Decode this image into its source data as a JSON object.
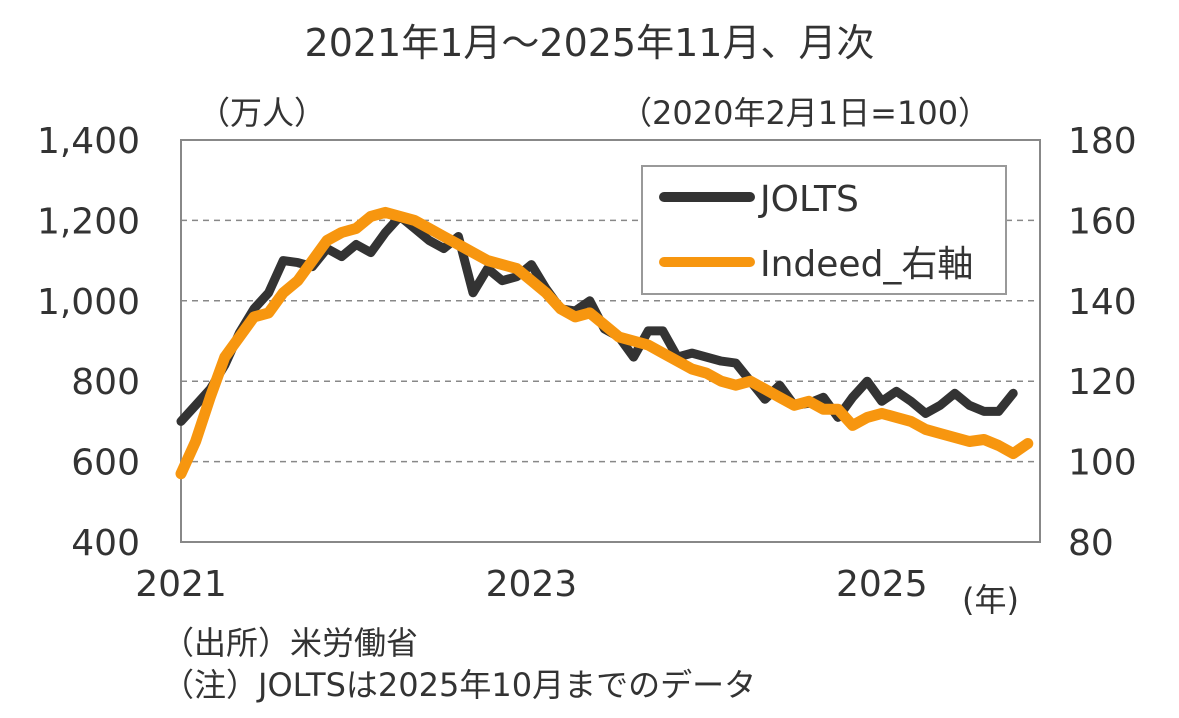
{
  "chart_data": {
    "type": "line",
    "title": "2021年1月～2025年11月、月次",
    "left_axis_unit": "（万人）",
    "right_axis_unit": "（2020年2月1日=100）",
    "x_unit": "(年)",
    "x_start": "2021-01",
    "x_ticks": [
      "2021",
      "2023",
      "2025"
    ],
    "y_left": {
      "range": [
        400,
        1400
      ],
      "ticks": [
        "400",
        "600",
        "800",
        "1,000",
        "1,200",
        "1,400"
      ]
    },
    "y_right": {
      "range": [
        80,
        180
      ],
      "ticks": [
        "80",
        "100",
        "120",
        "140",
        "160",
        "180"
      ]
    },
    "grid": true,
    "legend_position": "top-right",
    "series": [
      {
        "name": "JOLTS",
        "axis": "left",
        "color": "#333333",
        "values": [
          700,
          740,
          780,
          840,
          920,
          980,
          1020,
          1100,
          1095,
          1085,
          1130,
          1110,
          1140,
          1120,
          1170,
          1210,
          1180,
          1150,
          1130,
          1160,
          1020,
          1080,
          1050,
          1060,
          1090,
          1030,
          980,
          975,
          1000,
          930,
          910,
          860,
          925,
          925,
          860,
          870,
          860,
          850,
          845,
          800,
          755,
          790,
          740,
          745,
          760,
          710,
          760,
          800,
          750,
          775,
          750,
          720,
          740,
          770,
          740,
          725,
          725,
          770,
          null
        ]
      },
      {
        "name": "Indeed_右軸",
        "axis": "right",
        "color": "#F7960F",
        "values": [
          97,
          105,
          116,
          126,
          131,
          136,
          137,
          142,
          145,
          150,
          155,
          157,
          158,
          161,
          162,
          161,
          160,
          158,
          156,
          154,
          152,
          150,
          149,
          148,
          145,
          142,
          138,
          136,
          137,
          134,
          131,
          130,
          129,
          127,
          125,
          123,
          122,
          120,
          119,
          120,
          118,
          116,
          114,
          115,
          113,
          113,
          109,
          111,
          112,
          111,
          110,
          108,
          107,
          106,
          105,
          105.5,
          104,
          102,
          104.5
        ]
      }
    ]
  },
  "footer": {
    "source": "（出所）米労働省",
    "note": "（注）JOLTSは2025年10月までのデータ"
  }
}
